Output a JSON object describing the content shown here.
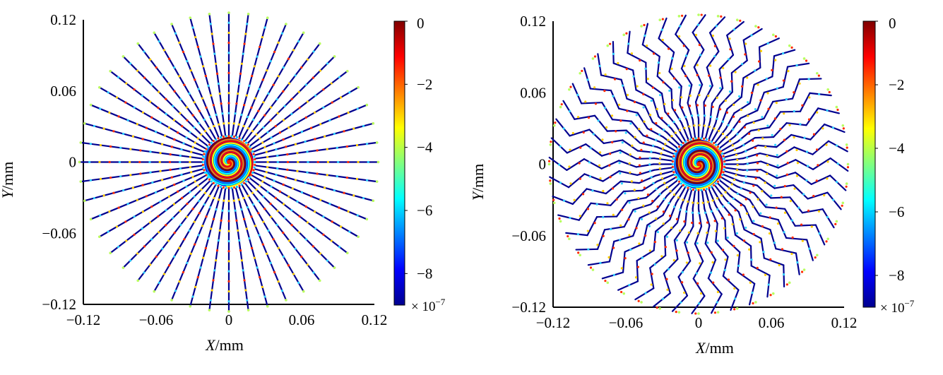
{
  "chart_data": [
    {
      "type": "heatmap",
      "xlabel": "X/mm",
      "ylabel": "Y/mm",
      "xlim": [
        -0.12,
        0.12
      ],
      "ylim": [
        -0.12,
        0.12
      ],
      "x_ticks": [
        {
          "value": -0.12,
          "label": "−0.12"
        },
        {
          "value": -0.06,
          "label": "−0.06"
        },
        {
          "value": 0,
          "label": "0"
        },
        {
          "value": 0.06,
          "label": "0.06"
        },
        {
          "value": 0.12,
          "label": "0.12"
        }
      ],
      "y_ticks": [
        {
          "value": 0.12,
          "label": "0.12"
        },
        {
          "value": 0.06,
          "label": "0.06"
        },
        {
          "value": 0,
          "label": "0"
        },
        {
          "value": -0.06,
          "label": "−0.06"
        },
        {
          "value": -0.12,
          "label": "−0.12"
        }
      ],
      "colorbar": {
        "range": [
          -9,
          0
        ],
        "ticks": [
          {
            "value": 0,
            "label": "0"
          },
          {
            "value": -2,
            "label": "−2"
          },
          {
            "value": -4,
            "label": "−4"
          },
          {
            "value": -6,
            "label": "−6"
          },
          {
            "value": -8,
            "label": "−8"
          }
        ],
        "multiplier_base": "× 10",
        "multiplier_exp": "−7",
        "colormap": [
          "#00008f",
          "#0000ff",
          "#0080ff",
          "#00ffff",
          "#80ff80",
          "#ffff00",
          "#ff8000",
          "#ff0000",
          "#800000"
        ]
      },
      "pattern": {
        "spokes": 48,
        "outer_radius": 0.1232,
        "spiral_core_radius": 0.018,
        "kinked": false
      }
    },
    {
      "type": "heatmap",
      "xlabel": "X/mm",
      "ylabel": "Y/mm",
      "xlim": [
        -0.12,
        0.12
      ],
      "ylim": [
        -0.12,
        0.12
      ],
      "x_ticks": [
        {
          "value": -0.12,
          "label": "−0.12"
        },
        {
          "value": -0.06,
          "label": "−0.06"
        },
        {
          "value": 0,
          "label": "0"
        },
        {
          "value": 0.06,
          "label": "0.06"
        },
        {
          "value": 0.12,
          "label": "0.12"
        }
      ],
      "y_ticks": [
        {
          "value": 0.12,
          "label": "0.12"
        },
        {
          "value": 0.06,
          "label": "0.06"
        },
        {
          "value": 0,
          "label": "0"
        },
        {
          "value": -0.06,
          "label": "−0.06"
        },
        {
          "value": -0.12,
          "label": "−0.12"
        }
      ],
      "colorbar": {
        "range": [
          -9,
          0
        ],
        "ticks": [
          {
            "value": 0,
            "label": "0"
          },
          {
            "value": -2,
            "label": "−2"
          },
          {
            "value": -4,
            "label": "−4"
          },
          {
            "value": -6,
            "label": "−6"
          },
          {
            "value": -8,
            "label": "−8"
          }
        ],
        "multiplier_base": "× 10",
        "multiplier_exp": "−7",
        "colormap": [
          "#00008f",
          "#0000ff",
          "#0080ff",
          "#00ffff",
          "#80ff80",
          "#ffff00",
          "#ff8000",
          "#ff0000",
          "#800000"
        ]
      },
      "pattern": {
        "spokes": 48,
        "outer_radius": 0.1232,
        "spiral_core_radius": 0.018,
        "kinked": true
      }
    }
  ]
}
